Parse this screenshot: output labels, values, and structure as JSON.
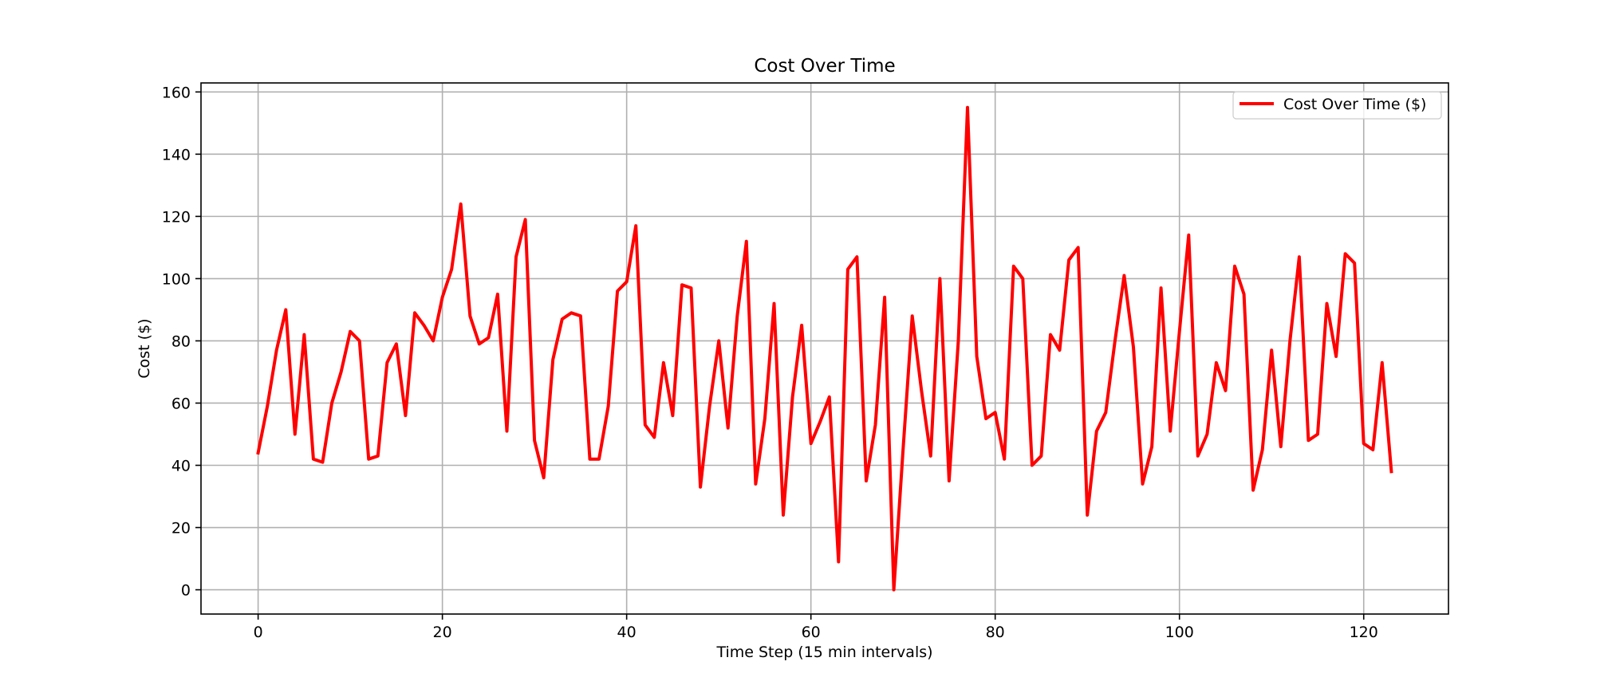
{
  "chart_data": {
    "type": "line",
    "title": "Cost Over Time",
    "xlabel": "Time Step (15 min intervals)",
    "ylabel": "Cost ($)",
    "xlim": [
      -6.2,
      129.2
    ],
    "ylim": [
      -7.8,
      162.9
    ],
    "xticks": [
      0,
      20,
      40,
      60,
      80,
      100,
      120
    ],
    "yticks": [
      0,
      20,
      40,
      60,
      80,
      100,
      120,
      140,
      160
    ],
    "grid": true,
    "legend_position": "top-right",
    "series": [
      {
        "name": "Cost Over Time ($)",
        "color": "#ff0000",
        "x": [
          0,
          1,
          2,
          3,
          4,
          5,
          6,
          7,
          8,
          9,
          10,
          11,
          12,
          13,
          14,
          15,
          16,
          17,
          18,
          19,
          20,
          21,
          22,
          23,
          24,
          25,
          26,
          27,
          28,
          29,
          30,
          31,
          32,
          33,
          34,
          35,
          36,
          37,
          38,
          39,
          40,
          41,
          42,
          43,
          44,
          45,
          46,
          47,
          48,
          49,
          50,
          51,
          52,
          53,
          54,
          55,
          56,
          57,
          58,
          59,
          60,
          61,
          62,
          63,
          64,
          65,
          66,
          67,
          68,
          69,
          70,
          71,
          72,
          73,
          74,
          75,
          76,
          77,
          78,
          79,
          80,
          81,
          82,
          83,
          84,
          85,
          86,
          87,
          88,
          89,
          90,
          91,
          92,
          93,
          94,
          95,
          96,
          97,
          98,
          99,
          100,
          101,
          102,
          103,
          104,
          105,
          106,
          107,
          108,
          109,
          110,
          111,
          112,
          113,
          114,
          115,
          116,
          117,
          118,
          119,
          120,
          121,
          122,
          123
        ],
        "y": [
          44,
          59,
          77,
          90,
          50,
          82,
          42,
          41,
          60,
          70,
          83,
          80,
          42,
          43,
          73,
          79,
          56,
          89,
          85,
          80,
          94,
          103,
          124,
          88,
          79,
          81,
          95,
          51,
          107,
          119,
          48,
          36,
          74,
          87,
          89,
          88,
          42,
          42,
          59,
          96,
          99,
          117,
          53,
          49,
          73,
          56,
          98,
          97,
          33,
          59,
          80,
          52,
          88,
          112,
          34,
          55,
          92,
          24,
          62,
          85,
          47,
          54,
          62,
          9,
          103,
          107,
          35,
          53,
          94,
          0,
          45,
          88,
          64,
          43,
          100,
          35,
          80,
          155,
          75,
          55,
          57,
          42,
          104,
          100,
          40,
          43,
          82,
          77,
          106,
          110,
          24,
          51,
          57,
          80,
          101,
          78,
          34,
          46,
          97,
          51,
          83,
          114,
          43,
          50,
          73,
          64,
          104,
          95,
          32,
          45,
          77,
          46,
          80,
          107,
          48,
          50,
          92,
          75,
          108,
          105,
          47,
          45,
          73,
          38
        ]
      }
    ]
  }
}
